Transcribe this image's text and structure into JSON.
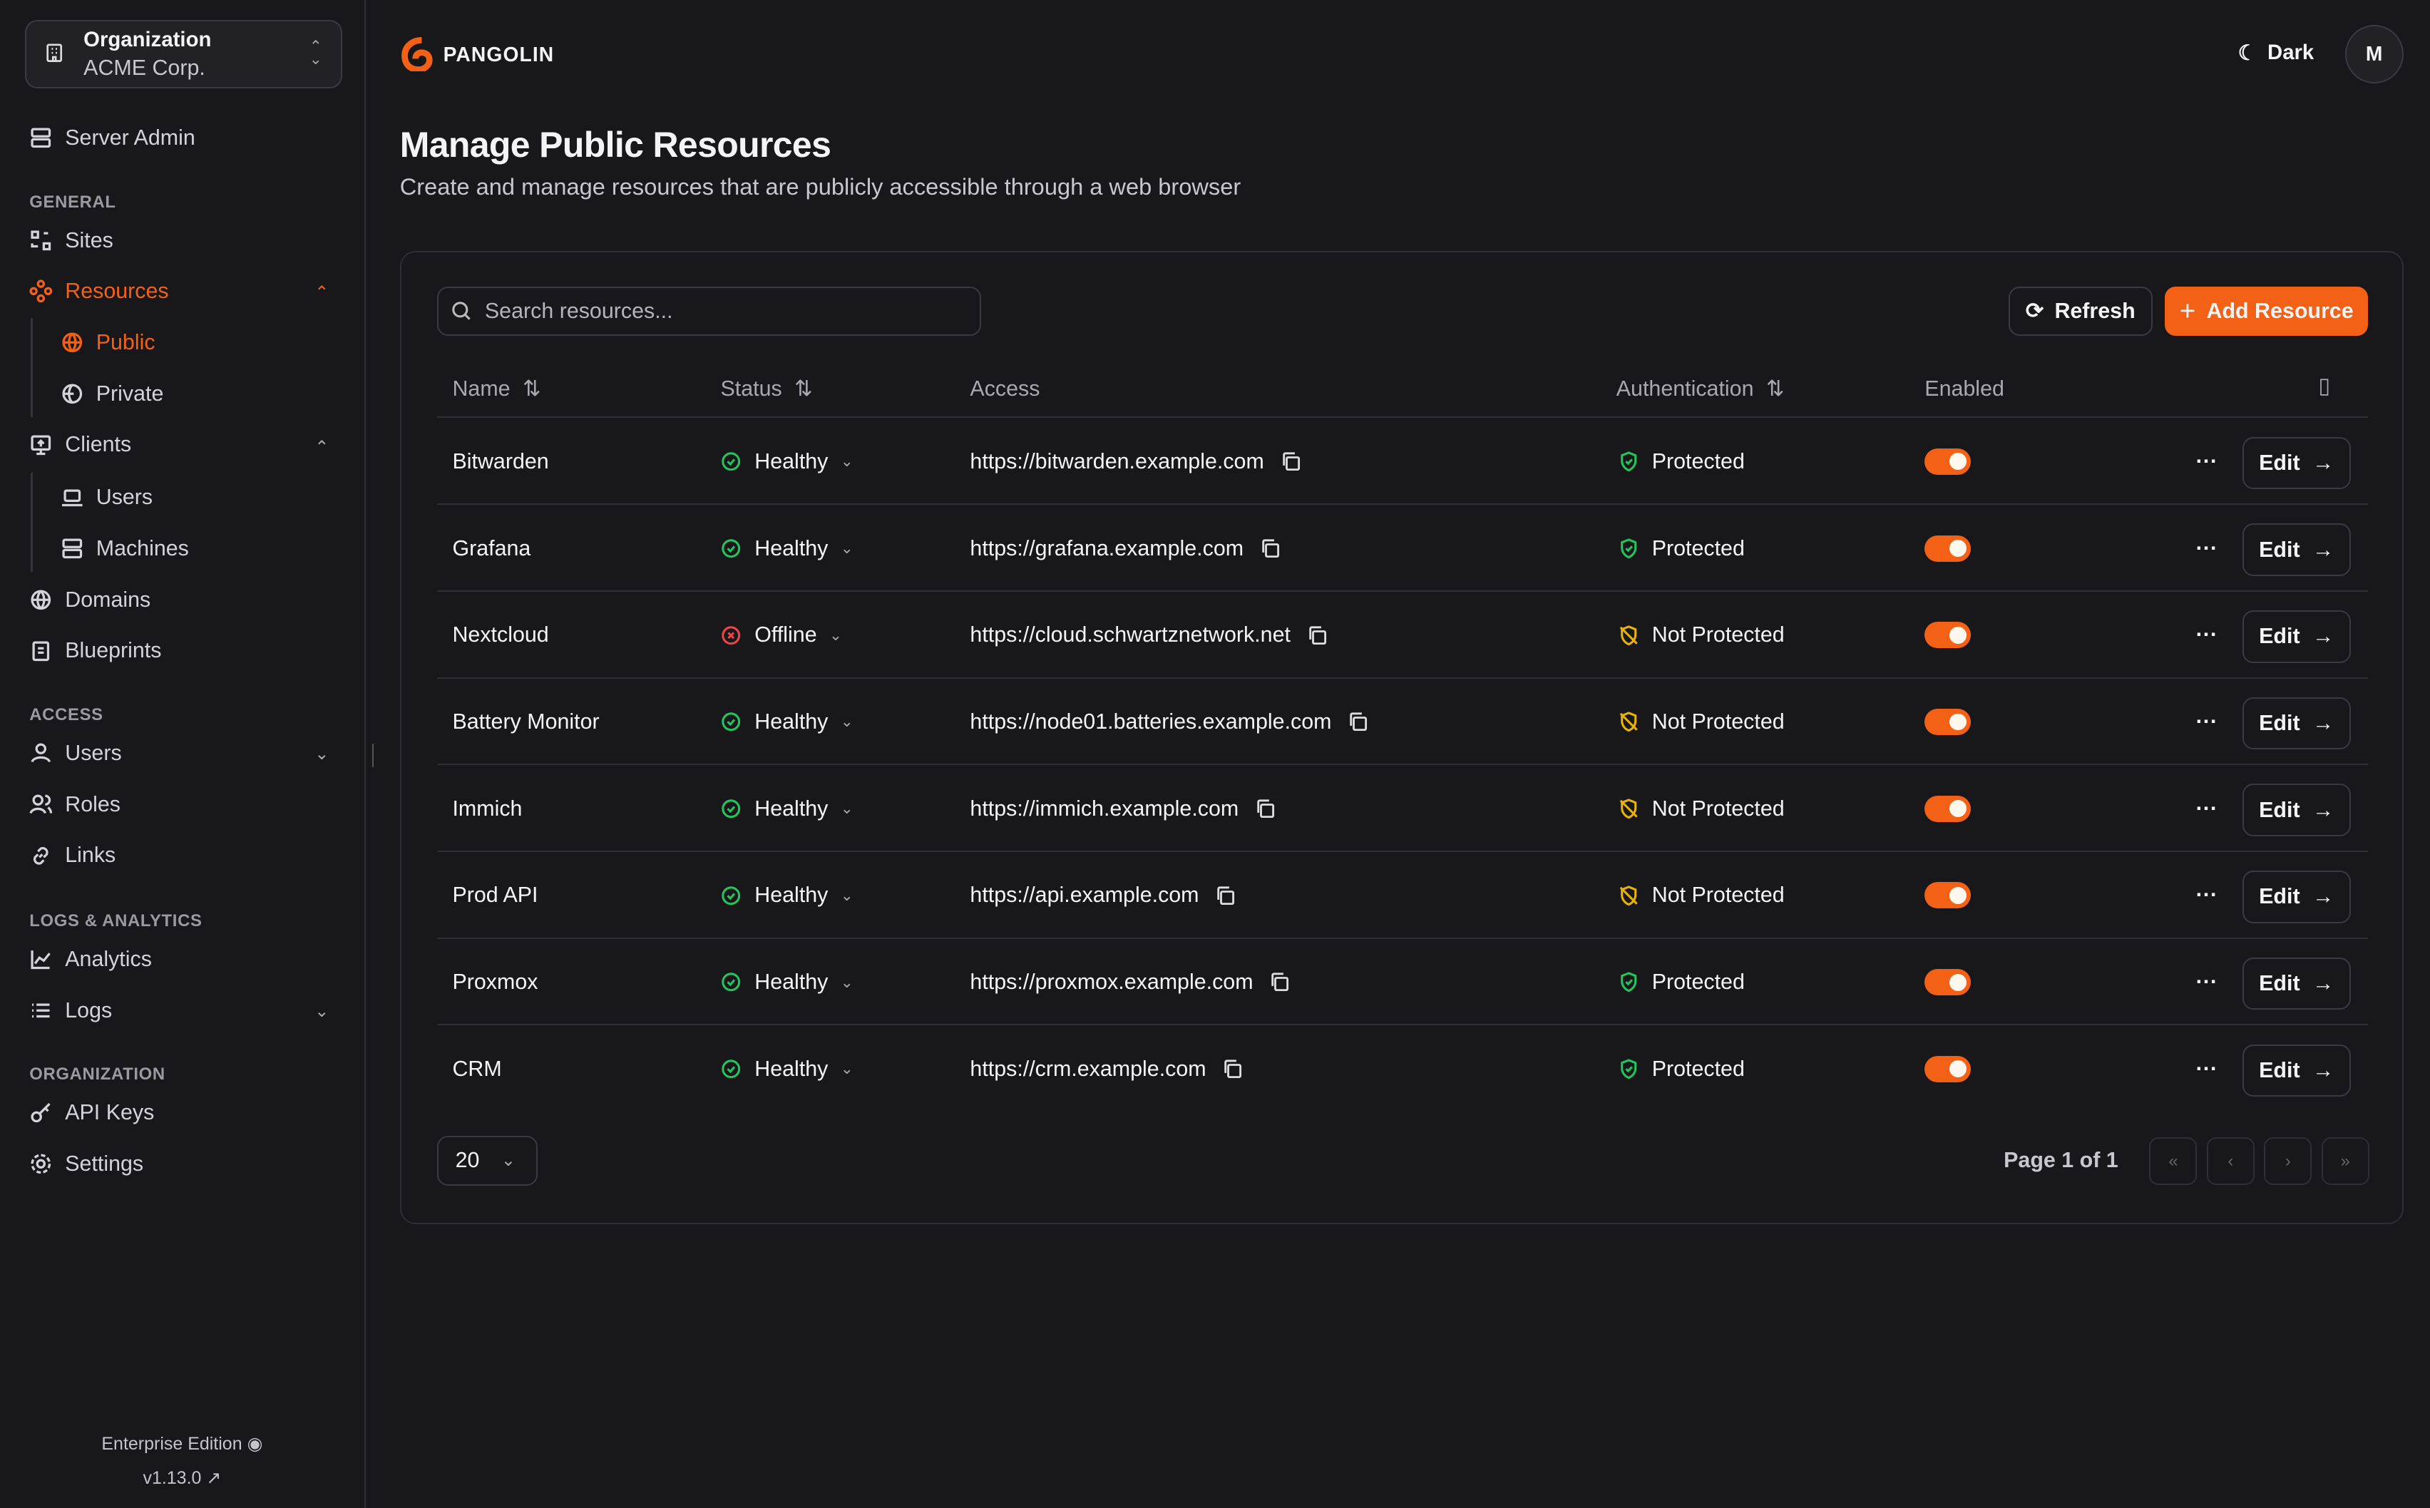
{
  "sidebar": {
    "org_label": "Organization",
    "org_name": "ACME Corp.",
    "server_admin": "Server Admin",
    "sections": {
      "general": "GENERAL",
      "access": "ACCESS",
      "logs": "LOGS & ANALYTICS",
      "organization": "ORGANIZATION"
    },
    "items": {
      "sites": "Sites",
      "resources": "Resources",
      "public": "Public",
      "private": "Private",
      "clients": "Clients",
      "users_client": "Users",
      "machines": "Machines",
      "domains": "Domains",
      "blueprints": "Blueprints",
      "users": "Users",
      "roles": "Roles",
      "links": "Links",
      "analytics": "Analytics",
      "logs": "Logs",
      "api_keys": "API Keys",
      "settings": "Settings"
    },
    "edition": "Enterprise Edition",
    "version": "v1.13.0"
  },
  "header": {
    "brand": "PANGOLIN",
    "theme": "Dark",
    "avatar": "M"
  },
  "page": {
    "title": "Manage Public Resources",
    "subtitle": "Create and manage resources that are publicly accessible through a web browser"
  },
  "toolbar": {
    "search_placeholder": "Search resources...",
    "refresh": "Refresh",
    "add": "Add Resource"
  },
  "table": {
    "columns": {
      "name": "Name",
      "status": "Status",
      "access": "Access",
      "auth": "Authentication",
      "enabled": "Enabled"
    },
    "edit_label": "Edit",
    "rows": [
      {
        "name": "Bitwarden",
        "status": "Healthy",
        "access": "https://bitwarden.example.com",
        "auth": "Protected",
        "enabled": true
      },
      {
        "name": "Grafana",
        "status": "Healthy",
        "access": "https://grafana.example.com",
        "auth": "Protected",
        "enabled": true
      },
      {
        "name": "Nextcloud",
        "status": "Offline",
        "access": "https://cloud.schwartznetwork.net",
        "auth": "Not Protected",
        "enabled": true
      },
      {
        "name": "Battery Monitor",
        "status": "Healthy",
        "access": "https://node01.batteries.example.com",
        "auth": "Not Protected",
        "enabled": true
      },
      {
        "name": "Immich",
        "status": "Healthy",
        "access": "https://immich.example.com",
        "auth": "Not Protected",
        "enabled": true
      },
      {
        "name": "Prod API",
        "status": "Healthy",
        "access": "https://api.example.com",
        "auth": "Not Protected",
        "enabled": true
      },
      {
        "name": "Proxmox",
        "status": "Healthy",
        "access": "https://proxmox.example.com",
        "auth": "Protected",
        "enabled": true
      },
      {
        "name": "CRM",
        "status": "Healthy",
        "access": "https://crm.example.com",
        "auth": "Protected",
        "enabled": true
      }
    ]
  },
  "pagination": {
    "page_size": "20",
    "page_text": "Page 1 of 1"
  },
  "colors": {
    "accent": "#f36117",
    "healthy": "#22c55e",
    "offline": "#ef4444",
    "warning": "#eab308"
  }
}
